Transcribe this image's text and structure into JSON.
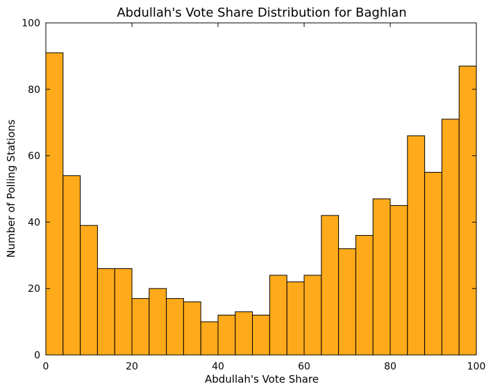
{
  "chart_data": {
    "type": "bar",
    "title": "Abdullah's Vote Share Distribution for Baghlan",
    "xlabel": "Abdullah's Vote Share",
    "ylabel": "Number of Polling Stations",
    "xlim": [
      0,
      100
    ],
    "ylim": [
      0,
      100
    ],
    "xticks": [
      0,
      20,
      40,
      60,
      80,
      100
    ],
    "yticks": [
      0,
      20,
      40,
      60,
      80,
      100
    ],
    "grid": false,
    "bar_color": "#ffaa1a",
    "edge_color": "#000000",
    "bins": [
      {
        "x0": 0,
        "x1": 4,
        "count": 91
      },
      {
        "x0": 4,
        "x1": 8,
        "count": 54
      },
      {
        "x0": 8,
        "x1": 12,
        "count": 39
      },
      {
        "x0": 12,
        "x1": 16,
        "count": 26
      },
      {
        "x0": 16,
        "x1": 20,
        "count": 26
      },
      {
        "x0": 20,
        "x1": 24,
        "count": 17
      },
      {
        "x0": 24,
        "x1": 28,
        "count": 20
      },
      {
        "x0": 28,
        "x1": 32,
        "count": 17
      },
      {
        "x0": 32,
        "x1": 36,
        "count": 16
      },
      {
        "x0": 36,
        "x1": 40,
        "count": 10
      },
      {
        "x0": 40,
        "x1": 44,
        "count": 12
      },
      {
        "x0": 44,
        "x1": 48,
        "count": 13
      },
      {
        "x0": 48,
        "x1": 52,
        "count": 12
      },
      {
        "x0": 52,
        "x1": 56,
        "count": 24
      },
      {
        "x0": 56,
        "x1": 60,
        "count": 22
      },
      {
        "x0": 60,
        "x1": 64,
        "count": 24
      },
      {
        "x0": 64,
        "x1": 68,
        "count": 42
      },
      {
        "x0": 68,
        "x1": 72,
        "count": 32
      },
      {
        "x0": 72,
        "x1": 76,
        "count": 36
      },
      {
        "x0": 76,
        "x1": 80,
        "count": 47
      },
      {
        "x0": 80,
        "x1": 84,
        "count": 45
      },
      {
        "x0": 84,
        "x1": 88,
        "count": 66
      },
      {
        "x0": 88,
        "x1": 92,
        "count": 55
      },
      {
        "x0": 92,
        "x1": 96,
        "count": 71
      },
      {
        "x0": 96,
        "x1": 100,
        "count": 87
      }
    ]
  }
}
